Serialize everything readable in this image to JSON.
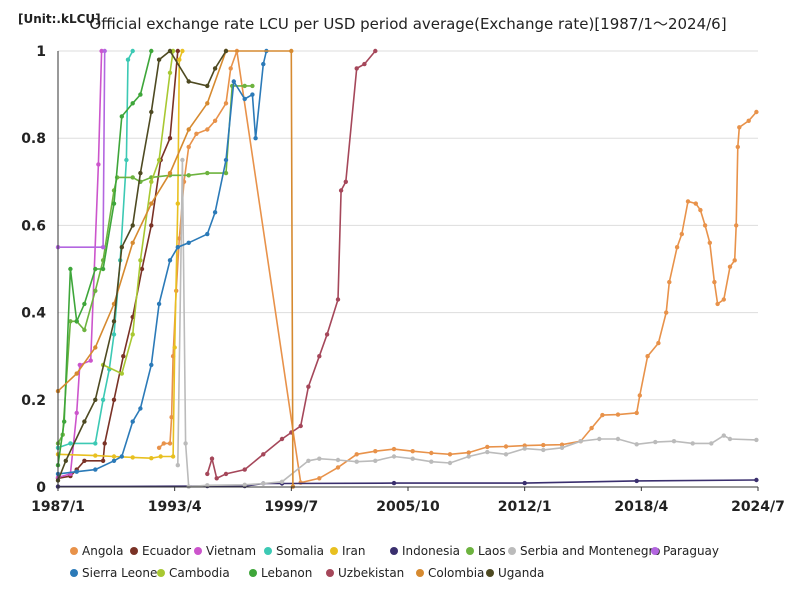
{
  "chart_data": {
    "type": "line",
    "title": "Official exchange rate LCU per USD  period average(Exchange rate)[1987/1～2024/6]",
    "unit_label": "[Unit:.kLCU]",
    "x_ticks": [
      "1987/1",
      "1993/4",
      "1999/7",
      "2005/10",
      "2012/1",
      "2018/4",
      "2024/7"
    ],
    "y_ticks": [
      "0",
      "0.2",
      "0.4",
      "0.6",
      "0.8",
      "1"
    ],
    "ylim": [
      0,
      1
    ],
    "xlim": [
      "1987/1",
      "2024/7"
    ],
    "grid": "horizontal",
    "legend_position": "bottom",
    "series": [
      {
        "name": "Angola",
        "color": "#e8924a",
        "points": [
          [
            "1992/6",
            0.09
          ],
          [
            "1992/9",
            0.1
          ],
          [
            "1993/1",
            0.1
          ],
          [
            "1993/2",
            0.16
          ],
          [
            "1993/3",
            0.3
          ],
          [
            "1993/5",
            0.45
          ],
          [
            "1993/7",
            0.57
          ],
          [
            "1993/10",
            0.7
          ],
          [
            "1994/1",
            0.78
          ],
          [
            "1994/6",
            0.81
          ],
          [
            "1995/1",
            0.82
          ],
          [
            "1995/6",
            0.84
          ],
          [
            "1996/1",
            0.88
          ],
          [
            "1996/4",
            0.96
          ],
          [
            "1996/8",
            1.0
          ],
          [
            "2000/1",
            0.01
          ],
          [
            "2001/1",
            0.02
          ],
          [
            "2002/1",
            0.045
          ],
          [
            "2003/1",
            0.075
          ],
          [
            "2004/1",
            0.082
          ],
          [
            "2005/1",
            0.087
          ],
          [
            "2006/1",
            0.082
          ],
          [
            "2007/1",
            0.078
          ],
          [
            "2008/1",
            0.075
          ],
          [
            "2009/1",
            0.079
          ],
          [
            "2010/1",
            0.092
          ],
          [
            "2011/1",
            0.093
          ],
          [
            "2012/1",
            0.095
          ],
          [
            "2013/1",
            0.096
          ],
          [
            "2014/1",
            0.097
          ],
          [
            "2015/1",
            0.105
          ],
          [
            "2015/8",
            0.135
          ],
          [
            "2016/3",
            0.165
          ],
          [
            "2017/1",
            0.166
          ],
          [
            "2018/1",
            0.17
          ],
          [
            "2018/3",
            0.21
          ],
          [
            "2018/8",
            0.3
          ],
          [
            "2019/3",
            0.33
          ],
          [
            "2019/8",
            0.4
          ],
          [
            "2019/10",
            0.47
          ],
          [
            "2020/3",
            0.55
          ],
          [
            "2020/6",
            0.58
          ],
          [
            "2020/10",
            0.655
          ],
          [
            "2021/3",
            0.65
          ],
          [
            "2021/6",
            0.635
          ],
          [
            "2021/9",
            0.6
          ],
          [
            "2021/12",
            0.56
          ],
          [
            "2022/3",
            0.47
          ],
          [
            "2022/5",
            0.42
          ],
          [
            "2022/9",
            0.43
          ],
          [
            "2023/1",
            0.505
          ],
          [
            "2023/4",
            0.52
          ],
          [
            "2023/5",
            0.6
          ],
          [
            "2023/6",
            0.78
          ],
          [
            "2023/7",
            0.825
          ],
          [
            "2024/1",
            0.84
          ],
          [
            "2024/6",
            0.86
          ]
        ]
      },
      {
        "name": "Ecuador",
        "color": "#7a3226",
        "points": [
          [
            "1987/1",
            0.02
          ],
          [
            "1987/9",
            0.025
          ],
          [
            "1988/1",
            0.04
          ],
          [
            "1988/6",
            0.06
          ],
          [
            "1989/6",
            0.06
          ],
          [
            "1989/7",
            0.1
          ],
          [
            "1990/1",
            0.2
          ],
          [
            "1990/7",
            0.3
          ],
          [
            "1991/1",
            0.39
          ],
          [
            "1991/7",
            0.5
          ],
          [
            "1992/1",
            0.6
          ],
          [
            "1992/7",
            0.75
          ],
          [
            "1993/1",
            0.8
          ],
          [
            "1993/6",
            1.0
          ]
        ]
      },
      {
        "name": "Vietnam",
        "color": "#cc55cc",
        "points": [
          [
            "1987/1",
            0.022
          ],
          [
            "1987/9",
            0.03
          ],
          [
            "1988/1",
            0.17
          ],
          [
            "1988/3",
            0.28
          ],
          [
            "1988/10",
            0.29
          ],
          [
            "1989/3",
            0.74
          ],
          [
            "1989/5",
            1.0
          ]
        ]
      },
      {
        "name": "Somalia",
        "color": "#3cc9b4",
        "points": [
          [
            "1987/1",
            0.09
          ],
          [
            "1987/9",
            0.1
          ],
          [
            "1989/1",
            0.1
          ],
          [
            "1989/6",
            0.2
          ],
          [
            "1989/10",
            0.27
          ],
          [
            "1990/1",
            0.35
          ],
          [
            "1990/5",
            0.52
          ],
          [
            "1990/9",
            0.75
          ],
          [
            "1990/10",
            0.98
          ],
          [
            "1991/1",
            1.0
          ]
        ]
      },
      {
        "name": "Iran",
        "color": "#e8c020",
        "points": [
          [
            "1987/1",
            0.075
          ],
          [
            "1989/1",
            0.072
          ],
          [
            "1990/1",
            0.07
          ],
          [
            "1991/1",
            0.068
          ],
          [
            "1992/1",
            0.066
          ],
          [
            "1992/7",
            0.07
          ],
          [
            "1993/3",
            0.07
          ],
          [
            "1993/4",
            0.32
          ],
          [
            "1993/6",
            0.65
          ],
          [
            "1993/7",
            0.98
          ],
          [
            "1993/9",
            1.0
          ]
        ]
      },
      {
        "name": "Indonesia",
        "color": "#3a2f6e",
        "points": [
          [
            "1987/1",
            0.001
          ],
          [
            "1995/1",
            0.002
          ],
          [
            "1997/1",
            0.002
          ],
          [
            "1998/1",
            0.008
          ],
          [
            "1999/1",
            0.008
          ],
          [
            "2005/1",
            0.009
          ],
          [
            "2012/1",
            0.009
          ],
          [
            "2018/1",
            0.014
          ],
          [
            "2024/6",
            0.016
          ]
        ]
      },
      {
        "name": "Laos",
        "color": "#6db33f",
        "points": [
          [
            "1987/1",
            0.1
          ],
          [
            "1987/4",
            0.12
          ],
          [
            "1987/9",
            0.38
          ],
          [
            "1988/1",
            0.38
          ],
          [
            "1988/6",
            0.36
          ],
          [
            "1989/1",
            0.45
          ],
          [
            "1989/6",
            0.52
          ],
          [
            "1990/1",
            0.68
          ],
          [
            "1990/3",
            0.71
          ],
          [
            "1991/1",
            0.71
          ],
          [
            "1991/6",
            0.7
          ],
          [
            "1992/1",
            0.71
          ],
          [
            "1993/1",
            0.715
          ],
          [
            "1994/1",
            0.715
          ],
          [
            "1995/1",
            0.72
          ],
          [
            "1996/1",
            0.72
          ],
          [
            "1996/5",
            0.92
          ],
          [
            "1997/1",
            0.92
          ],
          [
            "1997/6",
            0.92
          ]
        ]
      },
      {
        "name": "Serbia and Montenegro",
        "color": "#bbbbbb",
        "points": [
          [
            "1993/6",
            0.05
          ],
          [
            "1993/9",
            0.75
          ],
          [
            "1993/11",
            0.1
          ],
          [
            "1994/1",
            0.001
          ],
          [
            "1995/1",
            0.004
          ],
          [
            "1997/1",
            0.005
          ],
          [
            "1998/1",
            0.008
          ],
          [
            "1999/1",
            0.012
          ],
          [
            "2000/6",
            0.06
          ],
          [
            "2001/1",
            0.065
          ],
          [
            "2002/1",
            0.062
          ],
          [
            "2003/1",
            0.058
          ],
          [
            "2004/1",
            0.06
          ],
          [
            "2005/1",
            0.07
          ],
          [
            "2006/1",
            0.065
          ],
          [
            "2007/1",
            0.058
          ],
          [
            "2008/1",
            0.055
          ],
          [
            "2009/1",
            0.07
          ],
          [
            "2010/1",
            0.08
          ],
          [
            "2011/1",
            0.075
          ],
          [
            "2012/1",
            0.088
          ],
          [
            "2013/1",
            0.085
          ],
          [
            "2014/1",
            0.09
          ],
          [
            "2015/1",
            0.105
          ],
          [
            "2016/1",
            0.11
          ],
          [
            "2017/1",
            0.11
          ],
          [
            "2018/1",
            0.098
          ],
          [
            "2019/1",
            0.103
          ],
          [
            "2020/1",
            0.105
          ],
          [
            "2021/1",
            0.1
          ],
          [
            "2022/1",
            0.1
          ],
          [
            "2022/9",
            0.118
          ],
          [
            "2023/1",
            0.11
          ],
          [
            "2024/6",
            0.108
          ]
        ]
      },
      {
        "name": "Paraguay",
        "color": "#b366e0",
        "points": [
          [
            "1987/1",
            0.55
          ],
          [
            "1989/6",
            0.55
          ],
          [
            "1989/7",
            1.0
          ]
        ]
      },
      {
        "name": "Sierra Leone",
        "color": "#2b7ab8",
        "points": [
          [
            "1987/1",
            0.03
          ],
          [
            "1988/1",
            0.035
          ],
          [
            "1989/1",
            0.04
          ],
          [
            "1990/1",
            0.06
          ],
          [
            "1990/6",
            0.07
          ],
          [
            "1991/1",
            0.15
          ],
          [
            "1991/6",
            0.18
          ],
          [
            "1992/1",
            0.28
          ],
          [
            "1992/6",
            0.42
          ],
          [
            "1993/1",
            0.52
          ],
          [
            "1993/6",
            0.55
          ],
          [
            "1994/1",
            0.56
          ],
          [
            "1995/1",
            0.58
          ],
          [
            "1995/6",
            0.63
          ],
          [
            "1996/1",
            0.75
          ],
          [
            "1996/6",
            0.93
          ],
          [
            "1997/1",
            0.89
          ],
          [
            "1997/6",
            0.9
          ],
          [
            "1997/8",
            0.8
          ],
          [
            "1998/1",
            0.97
          ],
          [
            "1998/3",
            1.0
          ]
        ]
      },
      {
        "name": "Cambodia",
        "color": "#a8c832",
        "points": [
          [
            "1989/6",
            0.28
          ],
          [
            "1990/6",
            0.26
          ],
          [
            "1991/1",
            0.35
          ],
          [
            "1991/6",
            0.52
          ],
          [
            "1992/1",
            0.7
          ],
          [
            "1992/6",
            0.75
          ],
          [
            "1993/1",
            0.95
          ],
          [
            "1993/3",
            1.0
          ]
        ]
      },
      {
        "name": "Lebanon",
        "color": "#3ea63a",
        "points": [
          [
            "1987/1",
            0.05
          ],
          [
            "1987/5",
            0.15
          ],
          [
            "1987/9",
            0.5
          ],
          [
            "1988/1",
            0.38
          ],
          [
            "1988/6",
            0.42
          ],
          [
            "1989/1",
            0.5
          ],
          [
            "1989/6",
            0.5
          ],
          [
            "1990/1",
            0.65
          ],
          [
            "1990/6",
            0.85
          ],
          [
            "1991/1",
            0.88
          ],
          [
            "1991/6",
            0.9
          ],
          [
            "1992/1",
            1.0
          ]
        ]
      },
      {
        "name": "Uzbekistan",
        "color": "#a5475a",
        "points": [
          [
            "1995/1",
            0.03
          ],
          [
            "1995/4",
            0.065
          ],
          [
            "1995/7",
            0.02
          ],
          [
            "1996/1",
            0.03
          ],
          [
            "1997/1",
            0.04
          ],
          [
            "1998/1",
            0.075
          ],
          [
            "1999/1",
            0.11
          ],
          [
            "1999/7",
            0.125
          ],
          [
            "2000/1",
            0.14
          ],
          [
            "2000/6",
            0.23
          ],
          [
            "2001/1",
            0.3
          ],
          [
            "2001/6",
            0.35
          ],
          [
            "2002/1",
            0.43
          ],
          [
            "2002/3",
            0.68
          ],
          [
            "2002/6",
            0.7
          ],
          [
            "2003/1",
            0.96
          ],
          [
            "2003/6",
            0.97
          ],
          [
            "2004/1",
            1.0
          ]
        ]
      },
      {
        "name": "Colombia",
        "color": "#d68a30",
        "points": [
          [
            "1987/1",
            0.22
          ],
          [
            "1988/1",
            0.26
          ],
          [
            "1989/1",
            0.32
          ],
          [
            "1990/1",
            0.42
          ],
          [
            "1991/1",
            0.56
          ],
          [
            "1992/1",
            0.65
          ],
          [
            "1993/1",
            0.72
          ],
          [
            "1994/1",
            0.82
          ],
          [
            "1995/1",
            0.88
          ],
          [
            "1996/1",
            1.0
          ],
          [
            "1999/7",
            1.0
          ],
          [
            "1999/8",
            0.001
          ]
        ]
      },
      {
        "name": "Uganda",
        "color": "#4e4a22",
        "points": [
          [
            "1987/1",
            0.015
          ],
          [
            "1987/6",
            0.06
          ],
          [
            "1988/6",
            0.15
          ],
          [
            "1989/1",
            0.2
          ],
          [
            "1990/1",
            0.38
          ],
          [
            "1990/6",
            0.55
          ],
          [
            "1991/1",
            0.6
          ],
          [
            "1991/6",
            0.72
          ],
          [
            "1992/1",
            0.86
          ],
          [
            "1992/6",
            0.98
          ],
          [
            "1993/1",
            1.0
          ],
          [
            "1994/1",
            0.93
          ],
          [
            "1995/1",
            0.92
          ],
          [
            "1995/6",
            0.96
          ],
          [
            "1996/1",
            1.0
          ]
        ]
      }
    ]
  }
}
